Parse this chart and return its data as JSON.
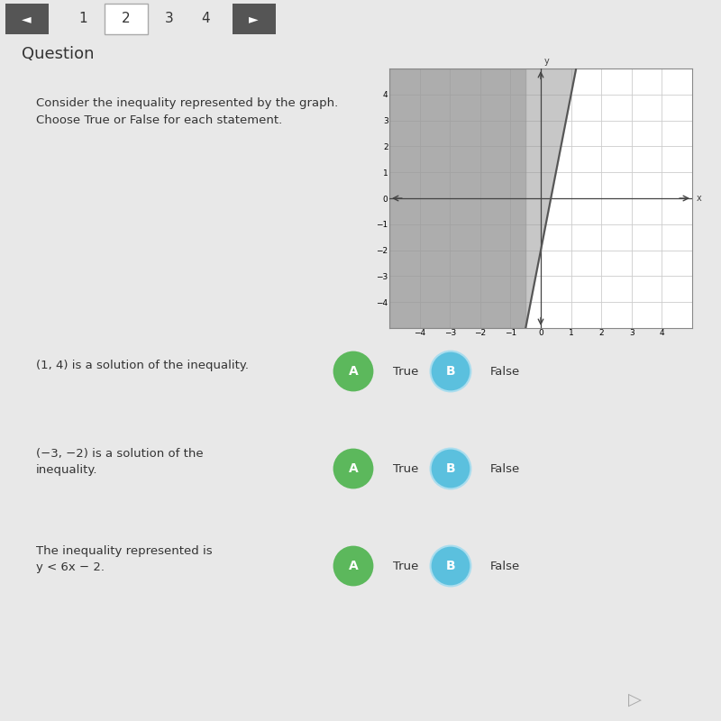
{
  "bg_color": "#e8e8e8",
  "graph": {
    "xlim": [
      -5,
      5
    ],
    "ylim": [
      -5,
      5
    ],
    "xticks": [
      -4,
      -3,
      -2,
      -1,
      0,
      1,
      2,
      3,
      4
    ],
    "yticks": [
      -4,
      -3,
      -2,
      -1,
      0,
      1,
      2,
      3,
      4
    ],
    "shade_color": "#999999",
    "shade_alpha": 0.55,
    "line_slope": 6,
    "line_intercept": -2,
    "line_color": "#555555"
  },
  "nav_numbers": [
    "1",
    "2",
    "3",
    "4"
  ],
  "instruction_text": "Consider the inequality represented by the graph.\nChoose True or False for each statement.",
  "rows": [
    {
      "statement": "(1, 4) is a solution of the inequality.",
      "multiline": false,
      "A_color": "#5cb85c",
      "B_color": "#5bc0de"
    },
    {
      "statement": "(−3, −2) is a solution of the\ninequality.",
      "multiline": true,
      "A_color": "#5cb85c",
      "B_color": "#5bc0de"
    },
    {
      "statement": "The inequality represented is\ny < 6x − 2.",
      "multiline": true,
      "A_color": "#5cb85c",
      "B_color": "#5bc0de"
    }
  ]
}
